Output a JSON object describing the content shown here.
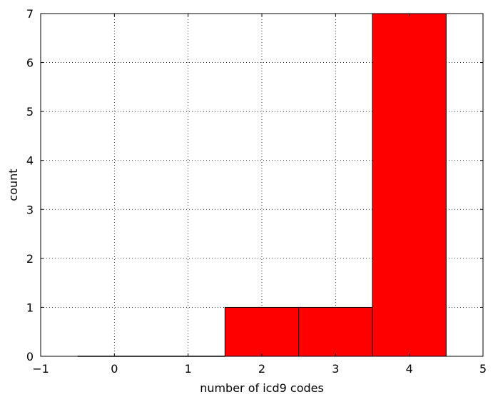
{
  "chart_data": {
    "type": "bar",
    "title": "",
    "xlabel": "number of icd9 codes",
    "ylabel": "count",
    "xlim": [
      -1,
      5
    ],
    "ylim": [
      0,
      7
    ],
    "xticks": [
      -1,
      0,
      1,
      2,
      3,
      4,
      5
    ],
    "xtick_labels": [
      "−1",
      "0",
      "1",
      "2",
      "3",
      "4",
      "5"
    ],
    "yticks": [
      0,
      1,
      2,
      3,
      4,
      5,
      6,
      7
    ],
    "ytick_labels": [
      "0",
      "1",
      "2",
      "3",
      "4",
      "5",
      "6",
      "7"
    ],
    "grid": true,
    "bar_color": "#ff0000",
    "bins": [
      {
        "center": 0,
        "width": 1,
        "value": 0
      },
      {
        "center": 1,
        "width": 1,
        "value": 0
      },
      {
        "center": 2,
        "width": 1,
        "value": 1
      },
      {
        "center": 3,
        "width": 1,
        "value": 1
      },
      {
        "center": 4,
        "width": 1,
        "value": 7
      }
    ]
  }
}
